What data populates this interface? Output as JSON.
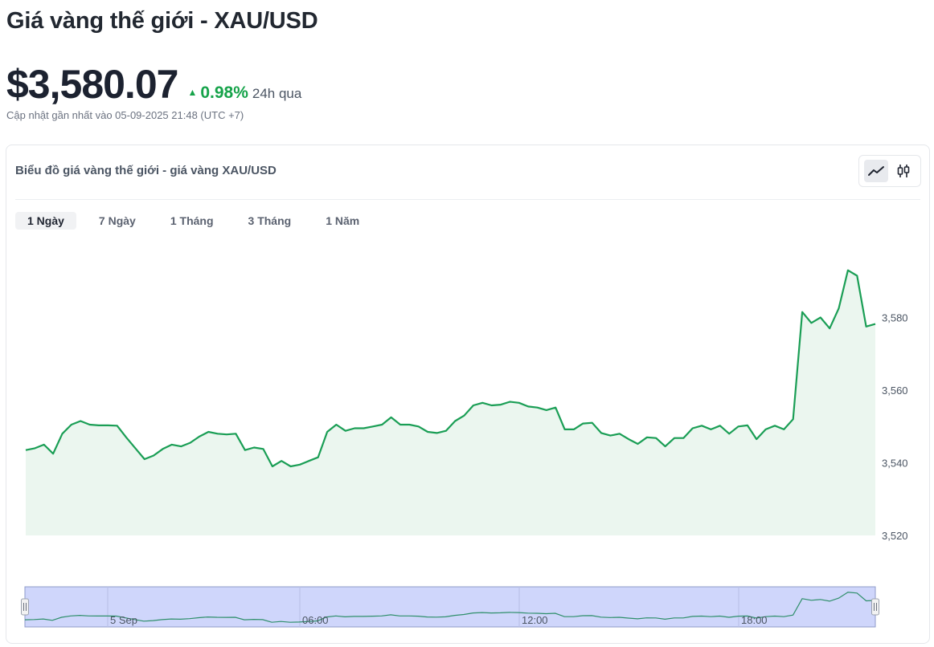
{
  "header": {
    "title": "Giá vàng thế giới - XAU/USD",
    "price": "$3,580.07",
    "change_pct": "0.98%",
    "change_period": "24h qua",
    "updated": "Cập nhật gần nhất vào 05-09-2025 21:48 (UTC +7)"
  },
  "card": {
    "title": "Biểu đồ giá vàng thế giới - giá vàng XAU/USD",
    "chart_type_icons": [
      "line-chart-icon",
      "candlestick-icon"
    ],
    "active_chart_type": "line"
  },
  "range_tabs": [
    {
      "label": "1 Ngày",
      "active": true
    },
    {
      "label": "7 Ngày",
      "active": false
    },
    {
      "label": "1 Tháng",
      "active": false
    },
    {
      "label": "3 Tháng",
      "active": false
    },
    {
      "label": "1 Năm",
      "active": false
    }
  ],
  "colors": {
    "up": "#16a34a",
    "line": "#1a9e55",
    "area_fill": "#ebf6ef",
    "navigator_fill": "#cfd6fb",
    "navigator_border": "#8f9bc9"
  },
  "chart_data": {
    "type": "line",
    "ylim": [
      3520,
      3600
    ],
    "y_ticks": [
      "3,520",
      "3,540",
      "3,560",
      "3,580"
    ],
    "y_tick_values": [
      3520,
      3540,
      3560,
      3580
    ],
    "navigator_labels": [
      "5 Sep",
      "06:00",
      "12:00",
      "18:00"
    ],
    "series": [
      {
        "values": [
          3543.5,
          3544,
          3545,
          3542.5,
          3548,
          3550.5,
          3551.5,
          3550.5,
          3550.3,
          3550.3,
          3550.2,
          3547,
          3544,
          3541,
          3542,
          3543.8,
          3545,
          3544.5,
          3545.5,
          3547.2,
          3548.5,
          3548,
          3547.8,
          3548,
          3543.5,
          3544.2,
          3543.8,
          3539,
          3540.5,
          3539,
          3539.5,
          3540.5,
          3541.5,
          3548.5,
          3550.5,
          3548.8,
          3549.5,
          3549.5,
          3550,
          3550.5,
          3552.5,
          3550.5,
          3550.5,
          3550,
          3548.5,
          3548.2,
          3548.8,
          3551.5,
          3553,
          3555.8,
          3556.5,
          3555.8,
          3556,
          3556.8,
          3556.5,
          3555.5,
          3555.2,
          3554.5,
          3555.2,
          3549.2,
          3549.2,
          3550.8,
          3551,
          3548.2,
          3547.5,
          3548,
          3546.5,
          3545.2,
          3547,
          3546.8,
          3544.5,
          3546.8,
          3546.8,
          3549.5,
          3550.2,
          3549.2,
          3550.2,
          3548,
          3550,
          3550.3,
          3546.5,
          3549.2,
          3550.2,
          3549.2,
          3552,
          3581.5,
          3578.5,
          3580,
          3577,
          3582.5,
          3593,
          3591.5,
          3577.5,
          3578.2
        ]
      }
    ]
  }
}
